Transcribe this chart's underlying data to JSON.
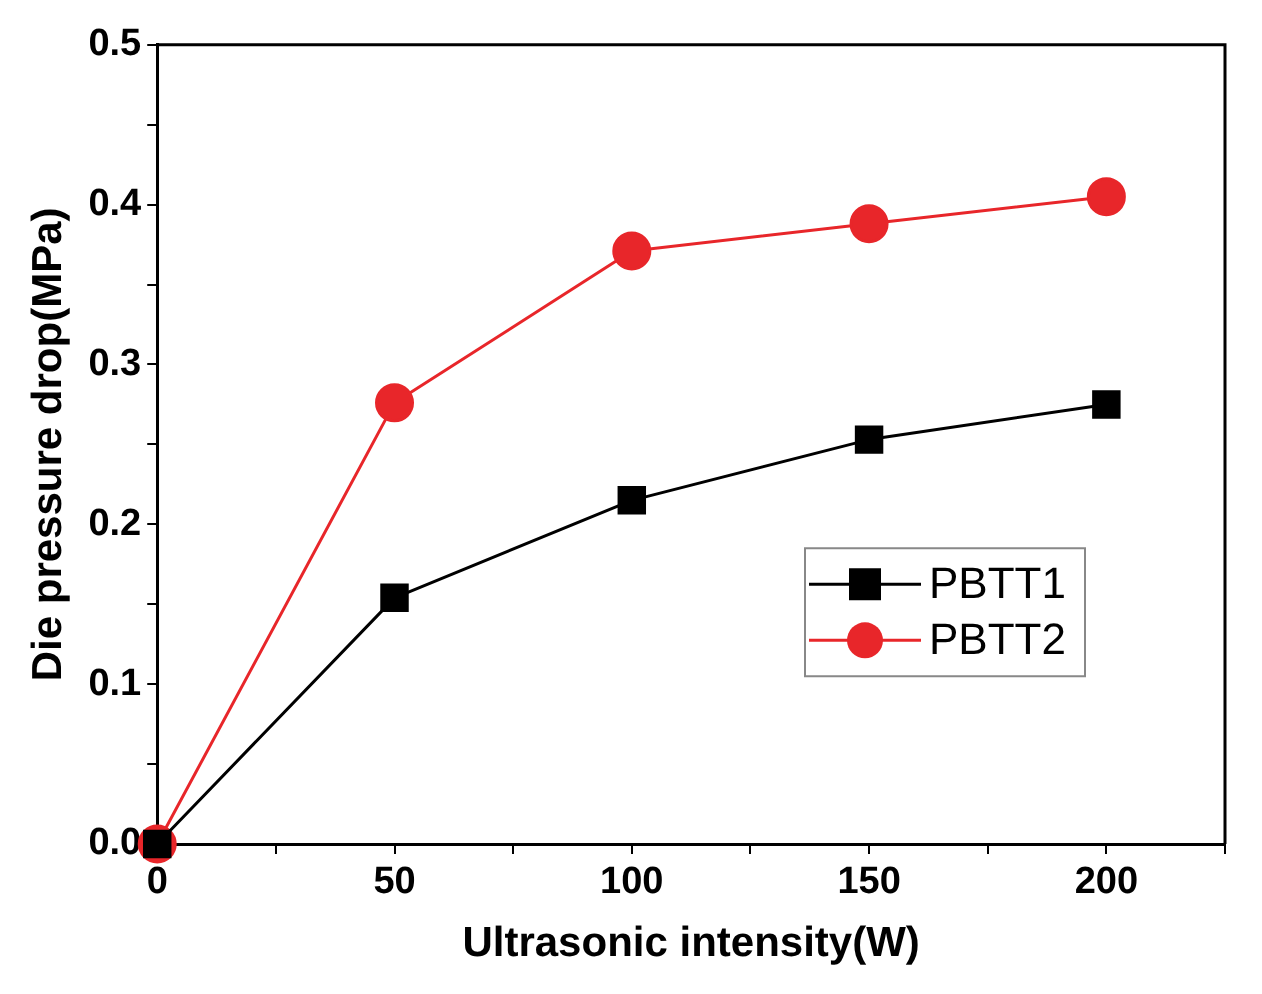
{
  "chart_data": {
    "type": "line",
    "xlabel": "Ultrasonic intensity(W)",
    "ylabel": "Die pressure drop(MPa)",
    "x": [
      0,
      50,
      100,
      150,
      200
    ],
    "series": [
      {
        "name": "PBTT1",
        "color": "#000000",
        "marker": "square",
        "values": [
          0,
          0.154,
          0.215,
          0.253,
          0.275
        ]
      },
      {
        "name": "PBTT2",
        "color": "#e8262a",
        "marker": "circle",
        "values": [
          0,
          0.276,
          0.371,
          0.388,
          0.405
        ]
      }
    ],
    "xlim": [
      0,
      225
    ],
    "xticks": [
      0,
      {
        "value": 25,
        "label": null
      },
      50,
      {
        "value": 75,
        "label": null
      },
      100,
      {
        "value": 125,
        "label": null
      },
      150,
      {
        "value": 175,
        "label": null
      },
      200,
      {
        "value": 225,
        "label": null
      }
    ],
    "ylim": [
      0,
      0.5
    ],
    "yticks": [
      "0.0",
      {
        "value": 0.05,
        "label": null
      },
      0.1,
      {
        "value": 0.15,
        "label": null
      },
      0.2,
      {
        "value": 0.25,
        "label": null
      },
      0.3,
      {
        "value": 0.35,
        "label": null
      },
      0.4,
      {
        "value": 0.45,
        "label": null
      },
      0.5
    ],
    "grid": false,
    "legend": "right"
  }
}
